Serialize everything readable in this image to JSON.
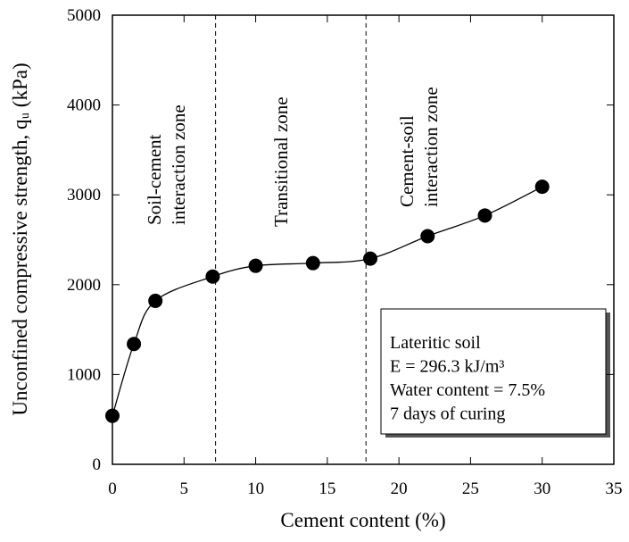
{
  "chart_data": {
    "type": "line",
    "x_label": "Cement content (%)",
    "y_label": "Unconfined compressive strength, qᵤ (kPa)",
    "x": [
      0,
      1.5,
      3,
      7,
      10,
      14,
      18,
      22,
      26,
      30
    ],
    "series": [
      {
        "name": "Lateritic soil",
        "color": "#000000",
        "values": [
          540,
          1340,
          1820,
          2090,
          2210,
          2240,
          2290,
          2540,
          2770,
          3090
        ]
      }
    ],
    "xlim": [
      0,
      35
    ],
    "xticks": [
      0,
      5,
      10,
      15,
      20,
      25,
      30,
      35
    ],
    "ylim": [
      0,
      5000
    ],
    "yticks": [
      0,
      1000,
      2000,
      3000,
      4000,
      5000
    ],
    "boundaries": [
      7.2,
      17.7
    ],
    "zones": [
      {
        "lines": [
          "Soil-cement",
          "interaction zone"
        ]
      },
      {
        "lines": [
          "Transitional zone"
        ]
      },
      {
        "lines": [
          "Cement-soil",
          "interaction zone"
        ]
      }
    ],
    "legend_lines": [
      "Lateritic soil",
      "E = 296.3 kJ/m³",
      "Water content = 7.5%",
      "7 days of curing"
    ]
  }
}
